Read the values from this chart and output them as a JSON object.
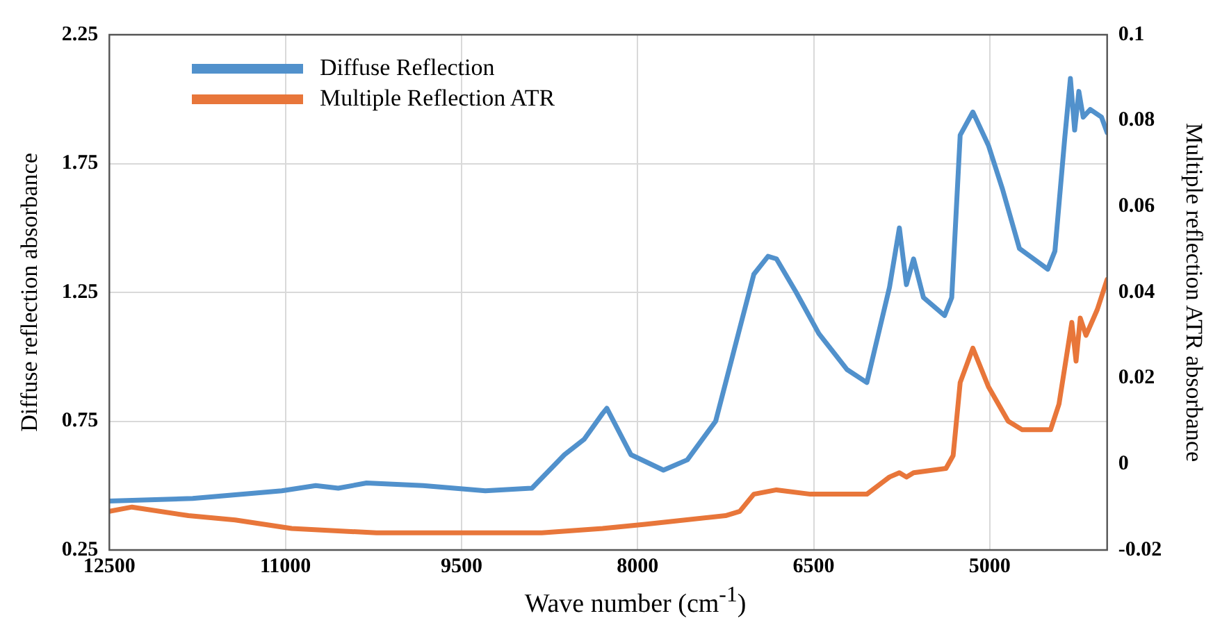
{
  "chart_data": {
    "type": "line",
    "xlabel": "Wave number (cm$^{-1}$)",
    "ylabel": "Diffuse reflection absorbance",
    "y2label": "Multiple reflection ATR absorbance",
    "xlim": [
      12500,
      4000
    ],
    "xticks": [
      12500,
      11000,
      9500,
      8000,
      6500,
      5000
    ],
    "ylim": [
      0.25,
      2.25
    ],
    "yticks": [
      0.25,
      0.75,
      1.25,
      1.75,
      2.25
    ],
    "y2lim": [
      -0.02,
      0.1
    ],
    "y2ticks": [
      -0.02,
      0,
      0.02,
      0.04,
      0.06,
      0.08,
      0.1
    ],
    "grid": true,
    "legend": "top left",
    "marker": "none",
    "line_style": "solid",
    "series": [
      {
        "name": "Diffuse Reflection",
        "color": "#5191cc",
        "x": [
          12500,
          11790,
          11031,
          10742,
          10550,
          10309,
          9827,
          9297,
          8900,
          8623,
          8455,
          8298,
          8262,
          8057,
          7780,
          7576,
          7335,
          7130,
          7010,
          6889,
          6817,
          6649,
          6456,
          6215,
          6047,
          5854,
          5770,
          5710,
          5649,
          5565,
          5385,
          5324,
          5252,
          5144,
          5011,
          4891,
          4747,
          4626,
          4506,
          4445,
          4361,
          4313,
          4277,
          4241,
          4204,
          4144,
          4048,
          4000
        ],
        "values": [
          0.44,
          0.45,
          0.48,
          0.5,
          0.49,
          0.51,
          0.5,
          0.48,
          0.49,
          0.62,
          0.68,
          0.78,
          0.8,
          0.62,
          0.56,
          0.6,
          0.75,
          1.11,
          1.32,
          1.39,
          1.38,
          1.25,
          1.09,
          0.95,
          0.9,
          1.27,
          1.5,
          1.28,
          1.38,
          1.23,
          1.16,
          1.23,
          1.86,
          1.95,
          1.82,
          1.65,
          1.42,
          1.38,
          1.34,
          1.41,
          1.85,
          2.08,
          1.88,
          2.03,
          1.93,
          1.96,
          1.93,
          1.87
        ]
      },
      {
        "name": "Multiple Reflection ATR",
        "color": "#e8763a",
        "axis": "y2",
        "x": [
          12500,
          12307,
          11826,
          11428,
          10947,
          10224,
          9418,
          8816,
          8298,
          7937,
          7251,
          7130,
          7010,
          6817,
          6528,
          6047,
          5854,
          5770,
          5710,
          5649,
          5373,
          5312,
          5252,
          5144,
          5011,
          4843,
          4723,
          4482,
          4410,
          4301,
          4265,
          4229,
          4180,
          4084,
          4000
        ],
        "values": [
          -0.011,
          -0.01,
          -0.012,
          -0.013,
          -0.015,
          -0.016,
          -0.016,
          -0.016,
          -0.015,
          -0.014,
          -0.012,
          -0.011,
          -0.007,
          -0.006,
          -0.007,
          -0.007,
          -0.003,
          -0.002,
          -0.003,
          -0.002,
          -0.001,
          0.002,
          0.019,
          0.027,
          0.018,
          0.01,
          0.008,
          0.008,
          0.014,
          0.033,
          0.024,
          0.034,
          0.03,
          0.036,
          0.043
        ]
      }
    ]
  }
}
